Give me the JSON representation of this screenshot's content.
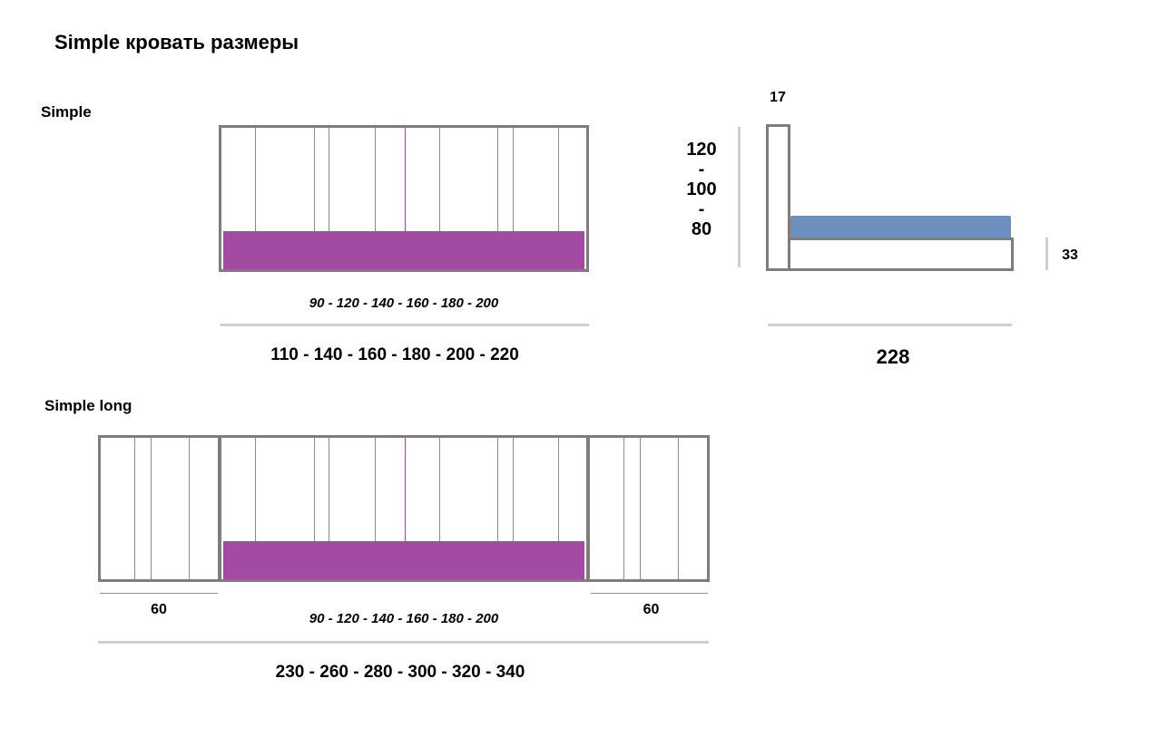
{
  "title": "Simple кровать размеры",
  "simple": {
    "label": "Simple",
    "front": {
      "inner_widths": "90 - 120 - 140 - 160 - 180 - 200",
      "outer_widths": "110 - 140 - 160 - 180 - 200 - 220"
    },
    "side": {
      "headboard_thickness": "17",
      "headboard_heights": [
        "120",
        "-",
        "100",
        "-",
        "80"
      ],
      "base_height": "33",
      "length": "228"
    }
  },
  "simple_long": {
    "label": "Simple long",
    "left_width": "60",
    "inner_widths": "90 - 120 - 140 - 160 - 180 - 200",
    "right_width": "60",
    "total_widths": "230 - 260 - 280 - 300 - 320 - 340"
  },
  "colors": {
    "mattress_front": "#a34aa3",
    "mattress_side": "#6d8fbf",
    "frame": "#7d7d7d",
    "ruler": "#cfcfcf"
  }
}
